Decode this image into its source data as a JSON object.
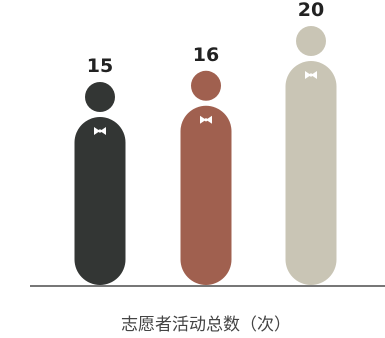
{
  "chart_data": {
    "type": "bar",
    "style": "pictograph-person",
    "categories": [
      "",
      "",
      ""
    ],
    "values": [
      15,
      16,
      20
    ],
    "xlabel": "志愿者活动总数（次）",
    "ylabel": "",
    "ylim": [
      0,
      20
    ],
    "grid": false,
    "legend": "none",
    "colors": [
      "#333634",
      "#A0604F",
      "#C9C5B5"
    ]
  }
}
